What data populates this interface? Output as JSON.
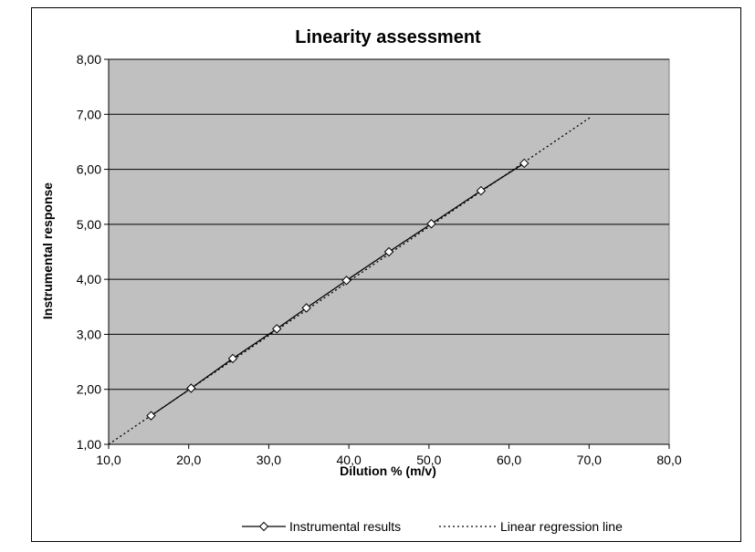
{
  "chart_data": {
    "type": "line",
    "title": "Linearity assessment",
    "xlabel": "Dilution % (m/v)",
    "ylabel": "Instrumental response",
    "xlim": [
      10,
      80
    ],
    "ylim": [
      1,
      8
    ],
    "x_ticks": [
      "10,0",
      "20,0",
      "30,0",
      "40,0",
      "50,0",
      "60,0",
      "70,0",
      "80,0"
    ],
    "y_ticks": [
      "1,00",
      "2,00",
      "3,00",
      "4,00",
      "5,00",
      "6,00",
      "7,00",
      "8,00"
    ],
    "grid": "horizontal",
    "plot_background": "#c0c0c0",
    "legend_position": "bottom",
    "series": [
      {
        "name": "Instrumental results",
        "style": "solid-with-diamond-markers",
        "x": [
          15.3,
          20.3,
          25.5,
          31.0,
          34.7,
          39.7,
          45.0,
          50.3,
          56.5,
          61.9
        ],
        "y": [
          1.52,
          2.02,
          2.56,
          3.1,
          3.48,
          3.98,
          4.5,
          5.01,
          5.61,
          6.11
        ]
      },
      {
        "name": "Linear regression line",
        "style": "dotted",
        "x": [
          10.0,
          70.2
        ],
        "y": [
          1.0,
          6.95
        ]
      }
    ]
  }
}
